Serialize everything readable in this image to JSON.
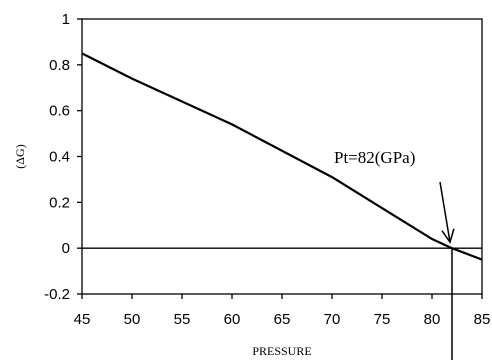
{
  "chart_data": {
    "type": "line",
    "title": "",
    "xlabel": "PRESSURE",
    "ylabel": "(ΔG)",
    "xlim": [
      45,
      85
    ],
    "ylim": [
      -0.2,
      1
    ],
    "x_ticks": [
      45,
      50,
      55,
      60,
      65,
      70,
      75,
      80,
      85
    ],
    "y_ticks": [
      -0.2,
      0,
      0.2,
      0.4,
      0.6,
      0.8,
      1
    ],
    "y_tick_labels": [
      "-0.2",
      "0",
      "0.2",
      "0.4",
      "0.6",
      "0.8",
      "1"
    ],
    "grid": false,
    "series": [
      {
        "x": [
          45,
          50,
          60,
          70,
          80,
          82,
          85
        ],
        "y": [
          0.85,
          0.74,
          0.54,
          0.31,
          0.04,
          0.0,
          -0.05
        ]
      }
    ],
    "annotations": [
      {
        "text": "Pt=82(GPa)",
        "x": 82,
        "y": 0
      }
    ]
  }
}
